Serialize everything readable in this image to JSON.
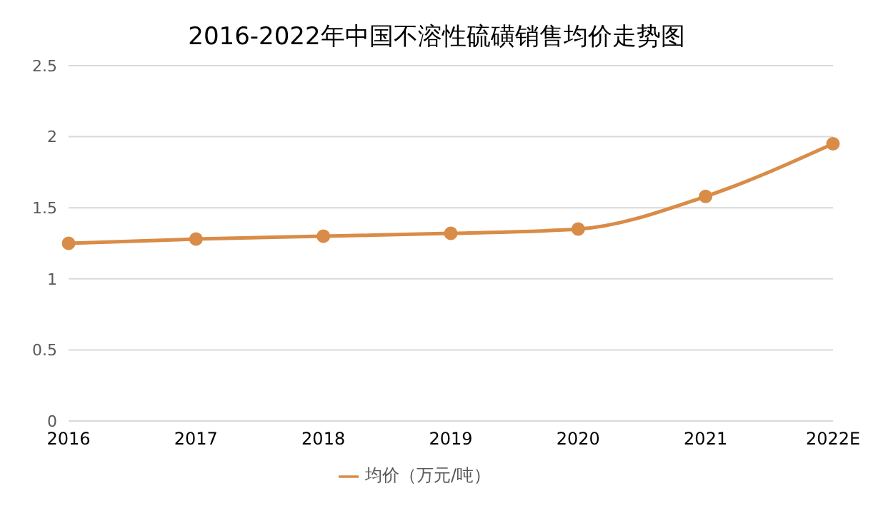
{
  "chart_data": {
    "type": "line",
    "title": "2016-2022年中国不溶性硫磺销售均价走势图",
    "categories": [
      "2016",
      "2017",
      "2018",
      "2019",
      "2020",
      "2021",
      "2022E"
    ],
    "series": [
      {
        "name": "均价（万元/吨）",
        "color": "#d98c48",
        "values": [
          1.25,
          1.28,
          1.3,
          1.32,
          1.35,
          1.58,
          1.95
        ]
      }
    ],
    "ylim": [
      0,
      2.5
    ],
    "yticks": [
      0,
      0.5,
      1,
      1.5,
      2,
      2.5
    ],
    "grid": "y",
    "legend": "bottom",
    "marker": "circle",
    "line_style": "solid"
  }
}
